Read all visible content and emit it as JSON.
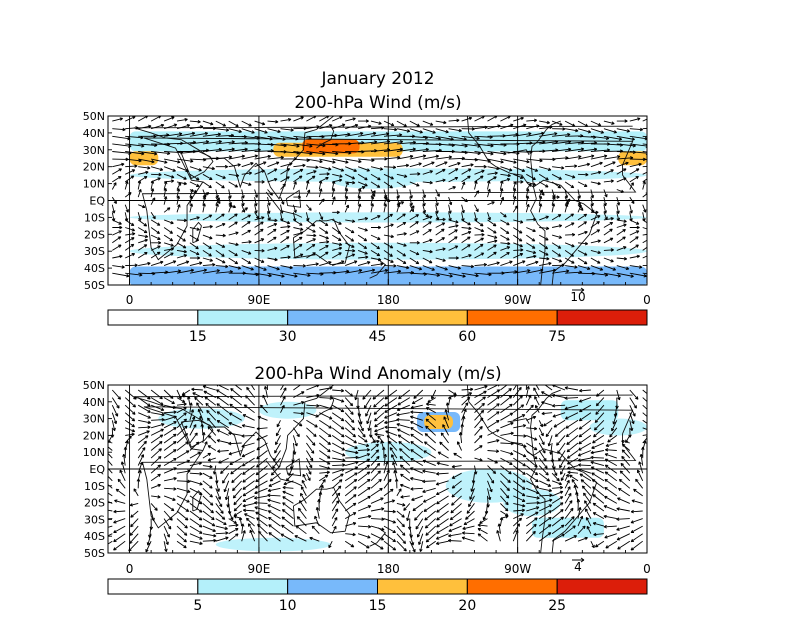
{
  "figure": {
    "title_line1": "January 2012",
    "panels": [
      {
        "id": "wind",
        "title": "200-hPa Wind (m/s)",
        "y_ticks": [
          "50N",
          "40N",
          "30N",
          "20N",
          "10N",
          "EQ",
          "10S",
          "20S",
          "30S",
          "40S",
          "50S"
        ],
        "x_ticks": [
          "0",
          "90E",
          "180",
          "90W",
          "0"
        ],
        "ref_vector_label": "10",
        "colorbar": {
          "labels": [
            "15",
            "30",
            "45",
            "60",
            "75"
          ],
          "colors": [
            "#ffffff",
            "#b4f0fa",
            "#78b9fa",
            "#ffc03c",
            "#ff6e00",
            "#dc1e0a"
          ]
        },
        "shading_bands": [
          {
            "lat": 35,
            "lon_from": 0,
            "lon_to": 360,
            "level": 1
          },
          {
            "lat": 30,
            "lon_from": 100,
            "lon_to": 190,
            "level": 3
          },
          {
            "lat": 32,
            "lon_from": 120,
            "lon_to": 160,
            "level": 4
          },
          {
            "lat": 25,
            "lon_from": 0,
            "lon_to": 20,
            "level": 3
          },
          {
            "lat": 25,
            "lon_from": 340,
            "lon_to": 360,
            "level": 3
          },
          {
            "lat": -45,
            "lon_from": 0,
            "lon_to": 360,
            "level": 2
          }
        ]
      },
      {
        "id": "anomaly",
        "title": "200-hPa Wind Anomaly (m/s)",
        "y_ticks": [
          "50N",
          "40N",
          "30N",
          "20N",
          "10N",
          "EQ",
          "10S",
          "20S",
          "30S",
          "40S",
          "50S"
        ],
        "x_ticks": [
          "0",
          "90E",
          "180",
          "90W",
          "0"
        ],
        "ref_vector_label": "4",
        "colorbar": {
          "labels": [
            "5",
            "10",
            "15",
            "20",
            "25"
          ],
          "colors": [
            "#ffffff",
            "#b4f0fa",
            "#78b9fa",
            "#ffc03c",
            "#ff6e00",
            "#dc1e0a"
          ]
        },
        "shading_bands": [
          {
            "lat": 28,
            "lon_from": 200,
            "lon_to": 230,
            "level": 2
          },
          {
            "lat": 28,
            "lon_from": 205,
            "lon_to": 225,
            "level": 3
          },
          {
            "lat": 35,
            "lon_from": 300,
            "lon_to": 340,
            "level": 1
          },
          {
            "lat": -35,
            "lon_from": 280,
            "lon_to": 330,
            "level": 1
          }
        ]
      }
    ]
  }
}
